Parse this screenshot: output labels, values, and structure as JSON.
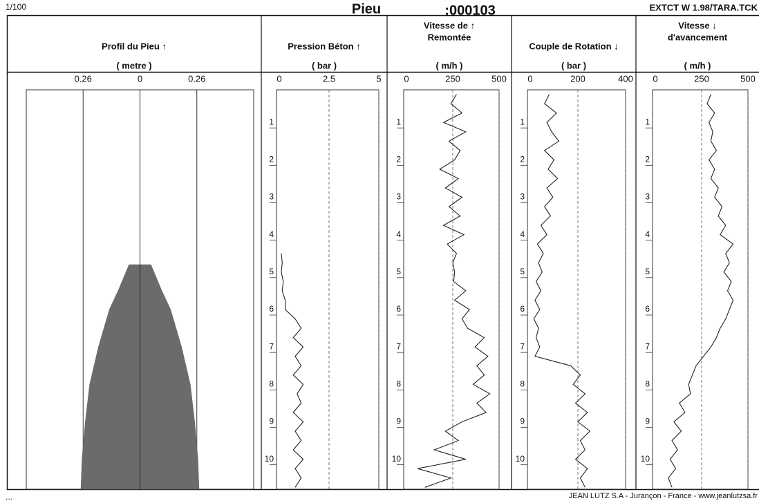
{
  "header": {
    "scale": "1/100",
    "title": "Pieu",
    "number": ":000103",
    "version": "EXTCT W 1.98/TARA.TCK"
  },
  "footer": {
    "left": "...",
    "right": "JEAN LUTZ S.A - Jurançon - France - www.jeanlutzsa.fr"
  },
  "chart_data": [
    {
      "type": "profile",
      "title": [
        "Profil du Pieu ↑"
      ],
      "unit": "( metre )",
      "color": "#6b6b6b",
      "y": [
        4.8,
        5.5,
        6,
        7,
        8,
        9,
        10,
        10.8
      ],
      "values": [
        0.05,
        0.1,
        0.14,
        0.19,
        0.23,
        0.25,
        0.265,
        0.27
      ],
      "xlim": [
        -0.52,
        0.52
      ],
      "xticks": [
        {
          "value": -0.26,
          "label": "0.26"
        },
        0,
        0.26
      ],
      "ylim": [
        0,
        10.8
      ]
    },
    {
      "type": "line",
      "title": [
        "Pression Béton ↑"
      ],
      "unit": "( bar )",
      "color": "#222",
      "y": [
        4.5,
        4.75,
        5,
        5.25,
        5.5,
        5.75,
        6,
        6.25,
        6.5,
        6.75,
        7,
        7.25,
        7.5,
        7.75,
        8,
        8.25,
        8.5,
        8.75,
        9,
        9.25,
        9.5,
        9.75,
        10,
        10.25,
        10.5,
        10.75
      ],
      "values": [
        0.1,
        0.15,
        0.1,
        0.2,
        0.15,
        0.3,
        0.3,
        0.8,
        1.1,
        0.7,
        1.2,
        0.8,
        1.1,
        0.7,
        1.2,
        0.9,
        1.1,
        0.7,
        1.2,
        0.8,
        1.1,
        0.7,
        1.2,
        0.8,
        1.1,
        0.8
      ],
      "xlim": [
        0,
        5
      ],
      "xticks": [
        0,
        2.5,
        5
      ],
      "ylim": [
        0,
        10.8
      ],
      "yticks": [
        1,
        2,
        3,
        4,
        5,
        6,
        7,
        8,
        9,
        10
      ]
    },
    {
      "type": "line",
      "title": [
        "Vitesse de ↑",
        "Remontée"
      ],
      "unit": "( m/h )",
      "color": "#222",
      "y": [
        0.25,
        0.5,
        0.75,
        1,
        1.25,
        1.5,
        1.75,
        2,
        2.25,
        2.5,
        2.75,
        3,
        3.25,
        3.5,
        3.75,
        4,
        4.25,
        4.5,
        4.75,
        5,
        5.25,
        5.5,
        5.75,
        6,
        6.25,
        6.5,
        6.75,
        7,
        7.25,
        7.5,
        7.75,
        8,
        8.25,
        8.5,
        8.75,
        9,
        9.25,
        9.5,
        9.75,
        10,
        10.25,
        10.5,
        10.75
      ],
      "values": [
        270,
        240,
        300,
        200,
        320,
        230,
        290,
        260,
        180,
        280,
        210,
        300,
        230,
        290,
        200,
        310,
        220,
        270,
        250,
        260,
        255,
        320,
        260,
        340,
        300,
        330,
        420,
        370,
        440,
        380,
        420,
        360,
        450,
        380,
        430,
        300,
        210,
        280,
        150,
        320,
        60,
        240,
        100
      ],
      "xlim": [
        0,
        500
      ],
      "xticks": [
        0,
        250,
        500
      ],
      "ylim": [
        0,
        10.8
      ],
      "yticks": [
        1,
        2,
        3,
        4,
        5,
        6,
        7,
        8,
        9,
        10
      ]
    },
    {
      "type": "line",
      "title": [
        "Couple de Rotation ↓"
      ],
      "unit": "( bar )",
      "color": "#222",
      "y": [
        0.25,
        0.5,
        0.75,
        1,
        1.25,
        1.5,
        1.75,
        2,
        2.25,
        2.5,
        2.75,
        3,
        3.25,
        3.5,
        3.75,
        4,
        4.25,
        4.5,
        4.75,
        5,
        5.25,
        5.5,
        5.75,
        6,
        6.25,
        6.5,
        6.75,
        7,
        7.25,
        7.5,
        7.75,
        8,
        8.25,
        8.5,
        8.75,
        9,
        9.25,
        9.5,
        9.75,
        10,
        10.25,
        10.5,
        10.75
      ],
      "values": [
        80,
        60,
        110,
        70,
        90,
        120,
        60,
        100,
        75,
        115,
        70,
        95,
        60,
        85,
        45,
        70,
        30,
        55,
        35,
        50,
        25,
        45,
        20,
        40,
        15,
        35,
        25,
        40,
        20,
        170,
        210,
        180,
        230,
        190,
        240,
        200,
        250,
        210,
        230,
        190,
        240,
        210,
        230
      ],
      "xlim": [
        0,
        400
      ],
      "xticks": [
        0,
        200,
        400
      ],
      "ylim": [
        0,
        10.8
      ],
      "yticks": [
        1,
        2,
        3,
        4,
        5,
        6,
        7,
        8,
        9,
        10
      ]
    },
    {
      "type": "line",
      "title": [
        "Vitesse ↓",
        "d'avancement"
      ],
      "unit": "( m/h )",
      "color": "#222",
      "y": [
        0.25,
        0.5,
        0.75,
        1,
        1.25,
        1.5,
        1.75,
        2,
        2.25,
        2.5,
        2.75,
        3,
        3.25,
        3.5,
        3.75,
        4,
        4.25,
        4.5,
        4.75,
        5,
        5.25,
        5.5,
        5.75,
        6,
        6.25,
        6.5,
        6.75,
        7,
        7.25,
        7.5,
        7.75,
        8,
        8.25,
        8.5,
        8.75,
        9,
        9.25,
        9.5,
        9.75,
        10,
        10.25,
        10.5,
        10.75
      ],
      "values": [
        300,
        280,
        320,
        290,
        310,
        300,
        330,
        290,
        320,
        300,
        340,
        320,
        360,
        340,
        380,
        350,
        420,
        380,
        400,
        370,
        410,
        390,
        420,
        400,
        380,
        350,
        330,
        300,
        260,
        220,
        200,
        180,
        190,
        130,
        160,
        100,
        140,
        90,
        120,
        80,
        110,
        70,
        90
      ],
      "xlim": [
        0,
        500
      ],
      "xticks": [
        0,
        250,
        500
      ],
      "ylim": [
        0,
        10.8
      ],
      "yticks": [
        1,
        2,
        3,
        4,
        5,
        6,
        7,
        8,
        9,
        10
      ]
    }
  ]
}
